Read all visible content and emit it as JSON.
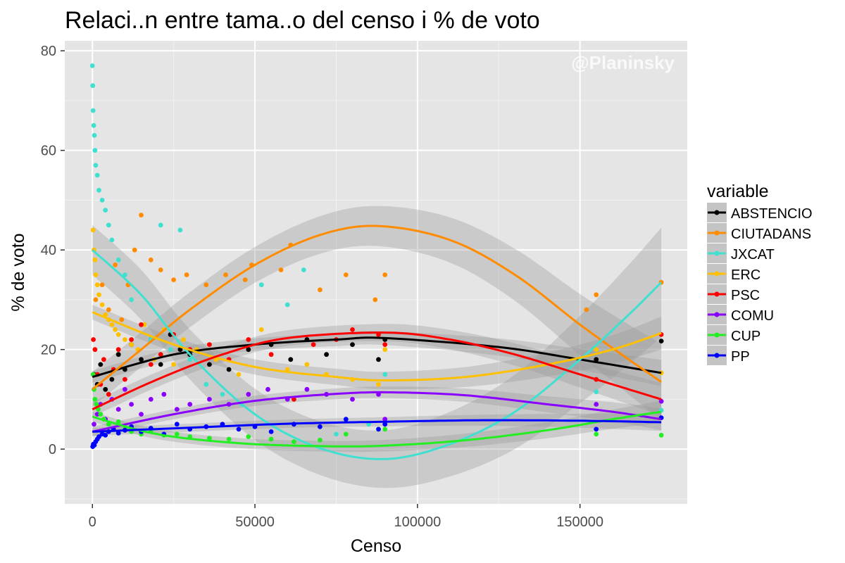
{
  "chart_data": {
    "type": "scatter",
    "title": "Relaci..n entre tama..o del censo i % de voto",
    "xlabel": "Censo",
    "ylabel": "% de voto",
    "xlim": [
      -8500,
      183000
    ],
    "ylim": [
      -11,
      82
    ],
    "x_ticks": [
      0,
      50000,
      100000,
      150000
    ],
    "x_tick_labels": [
      "0",
      "50000",
      "100000",
      "150000"
    ],
    "y_ticks": [
      0,
      20,
      40,
      60,
      80
    ],
    "y_tick_labels": [
      "0",
      "20",
      "40",
      "60",
      "80"
    ],
    "grid": true,
    "watermark": "@Planinsky",
    "legend": {
      "title": "variable",
      "placement": "right"
    },
    "series": [
      {
        "name": "ABSTENCIO",
        "color": "#000000",
        "points": [
          [
            500,
            15
          ],
          [
            1500,
            13
          ],
          [
            2500,
            17
          ],
          [
            4000,
            12
          ],
          [
            6000,
            14
          ],
          [
            8000,
            19
          ],
          [
            10000,
            16
          ],
          [
            12000,
            21
          ],
          [
            15000,
            18
          ],
          [
            18000,
            22
          ],
          [
            21000,
            17
          ],
          [
            24000,
            23
          ],
          [
            27000,
            20
          ],
          [
            30000,
            19
          ],
          [
            36000,
            17
          ],
          [
            42000,
            16
          ],
          [
            48000,
            20
          ],
          [
            55000,
            21
          ],
          [
            61000,
            18
          ],
          [
            66000,
            22
          ],
          [
            72000,
            19
          ],
          [
            80000,
            21
          ],
          [
            88000,
            18
          ],
          [
            90000,
            22
          ],
          [
            155000,
            18
          ],
          [
            175000,
            21.7
          ]
        ],
        "fit": [
          [
            0,
            14.5
          ],
          [
            25000,
            19
          ],
          [
            50000,
            21
          ],
          [
            75000,
            22
          ],
          [
            90000,
            22.3
          ],
          [
            125000,
            20.5
          ],
          [
            150000,
            18
          ],
          [
            175000,
            15.3
          ]
        ],
        "band": 1.2
      },
      {
        "name": "CIUTADANS",
        "color": "#ff8c00",
        "points": [
          [
            1000,
            30
          ],
          [
            3000,
            33
          ],
          [
            5000,
            28
          ],
          [
            7000,
            37
          ],
          [
            9000,
            26
          ],
          [
            11000,
            33
          ],
          [
            13000,
            40
          ],
          [
            15000,
            47
          ],
          [
            18000,
            38
          ],
          [
            21000,
            36
          ],
          [
            25000,
            34
          ],
          [
            29000,
            35
          ],
          [
            35000,
            33
          ],
          [
            41000,
            35
          ],
          [
            47000,
            34
          ],
          [
            49000,
            37
          ],
          [
            58000,
            36
          ],
          [
            61000,
            41
          ],
          [
            70000,
            32
          ],
          [
            78000,
            35
          ],
          [
            87000,
            30
          ],
          [
            90000,
            35
          ],
          [
            152000,
            28
          ],
          [
            155000,
            31
          ],
          [
            175000,
            33.5
          ]
        ],
        "fit": [
          [
            0,
            12
          ],
          [
            15000,
            20
          ],
          [
            30000,
            28
          ],
          [
            50000,
            37
          ],
          [
            70000,
            43
          ],
          [
            88000,
            44.8
          ],
          [
            110000,
            42
          ],
          [
            130000,
            35
          ],
          [
            150000,
            25
          ],
          [
            165000,
            18
          ],
          [
            175000,
            13.5
          ]
        ],
        "band": 3.5
      },
      {
        "name": "JXCAT",
        "color": "#40e0d0",
        "points": [
          [
            0,
            77
          ],
          [
            100,
            73
          ],
          [
            200,
            68
          ],
          [
            400,
            65
          ],
          [
            600,
            63
          ],
          [
            800,
            60
          ],
          [
            1000,
            57
          ],
          [
            1500,
            55
          ],
          [
            2000,
            52
          ],
          [
            3000,
            50
          ],
          [
            4000,
            48
          ],
          [
            5000,
            45
          ],
          [
            6000,
            42
          ],
          [
            8000,
            38
          ],
          [
            10000,
            35
          ],
          [
            12000,
            30
          ],
          [
            15000,
            25
          ],
          [
            18000,
            22
          ],
          [
            21000,
            45
          ],
          [
            24000,
            20
          ],
          [
            27000,
            44
          ],
          [
            30000,
            18
          ],
          [
            35000,
            13
          ],
          [
            40000,
            11
          ],
          [
            46000,
            9
          ],
          [
            52000,
            33
          ],
          [
            60000,
            29
          ],
          [
            65000,
            36
          ],
          [
            75000,
            3
          ],
          [
            85000,
            5
          ],
          [
            90000,
            15
          ],
          [
            155000,
            11.5
          ],
          [
            175000,
            7.8
          ]
        ],
        "fit": [
          [
            0,
            40
          ],
          [
            15000,
            31
          ],
          [
            30000,
            19
          ],
          [
            50000,
            7
          ],
          [
            70000,
            0.2
          ],
          [
            90000,
            -2
          ],
          [
            110000,
            1
          ],
          [
            130000,
            7.5
          ],
          [
            150000,
            18
          ],
          [
            165000,
            27
          ],
          [
            175000,
            33.5
          ]
        ],
        "band": 5
      },
      {
        "name": "ERC",
        "color": "#ffc000",
        "points": [
          [
            200,
            44
          ],
          [
            500,
            40
          ],
          [
            800,
            38
          ],
          [
            1000,
            35
          ],
          [
            1500,
            33
          ],
          [
            2000,
            31
          ],
          [
            3000,
            29
          ],
          [
            4000,
            27
          ],
          [
            5000,
            26
          ],
          [
            6000,
            25
          ],
          [
            7000,
            24
          ],
          [
            8000,
            23
          ],
          [
            10000,
            22
          ],
          [
            12000,
            21
          ],
          [
            14000,
            20
          ],
          [
            16000,
            25
          ],
          [
            19000,
            18
          ],
          [
            22000,
            24
          ],
          [
            25000,
            17
          ],
          [
            28000,
            22
          ],
          [
            32000,
            20
          ],
          [
            38000,
            18
          ],
          [
            45000,
            15
          ],
          [
            52000,
            24
          ],
          [
            60000,
            16
          ],
          [
            66000,
            17
          ],
          [
            72000,
            15
          ],
          [
            80000,
            14
          ],
          [
            88000,
            13
          ],
          [
            90000,
            20
          ],
          [
            155000,
            20
          ],
          [
            175000,
            15.3
          ]
        ],
        "fit": [
          [
            0,
            27.5
          ],
          [
            25000,
            21
          ],
          [
            50000,
            16.5
          ],
          [
            75000,
            14.5
          ],
          [
            90000,
            13.8
          ],
          [
            115000,
            14.5
          ],
          [
            140000,
            17
          ],
          [
            160000,
            20
          ],
          [
            175000,
            23.3
          ]
        ],
        "band": 1.5
      },
      {
        "name": "PSC",
        "color": "#ff0000",
        "points": [
          [
            300,
            22
          ],
          [
            800,
            20
          ],
          [
            1500,
            15
          ],
          [
            2500,
            13
          ],
          [
            3500,
            18
          ],
          [
            5000,
            11
          ],
          [
            6500,
            16
          ],
          [
            8000,
            20
          ],
          [
            10000,
            14
          ],
          [
            12000,
            22
          ],
          [
            15000,
            25
          ],
          [
            18000,
            17
          ],
          [
            21000,
            19
          ],
          [
            25000,
            23
          ],
          [
            30000,
            20
          ],
          [
            36000,
            21
          ],
          [
            42000,
            18
          ],
          [
            48000,
            22
          ],
          [
            55000,
            19
          ],
          [
            62000,
            10
          ],
          [
            68000,
            21
          ],
          [
            75000,
            22
          ],
          [
            80000,
            24
          ],
          [
            88000,
            23
          ],
          [
            90000,
            21
          ],
          [
            155000,
            14
          ],
          [
            175000,
            23
          ]
        ],
        "fit": [
          [
            0,
            8
          ],
          [
            20000,
            14
          ],
          [
            40000,
            19
          ],
          [
            60000,
            22.3
          ],
          [
            90000,
            23.4
          ],
          [
            110000,
            22
          ],
          [
            130000,
            19
          ],
          [
            150000,
            15
          ],
          [
            165000,
            12
          ],
          [
            175000,
            10
          ]
        ],
        "band": 1.5
      },
      {
        "name": "COMU",
        "color": "#8a00ff",
        "points": [
          [
            500,
            5
          ],
          [
            1500,
            7
          ],
          [
            2500,
            9
          ],
          [
            4000,
            6
          ],
          [
            6000,
            10
          ],
          [
            8000,
            8
          ],
          [
            10000,
            12
          ],
          [
            12000,
            9
          ],
          [
            15000,
            7
          ],
          [
            18000,
            10
          ],
          [
            22000,
            11
          ],
          [
            26000,
            8
          ],
          [
            30000,
            9
          ],
          [
            36000,
            10
          ],
          [
            42000,
            9
          ],
          [
            48000,
            11
          ],
          [
            54000,
            12
          ],
          [
            60000,
            10
          ],
          [
            66000,
            12
          ],
          [
            72000,
            11
          ],
          [
            80000,
            10
          ],
          [
            88000,
            11
          ],
          [
            90000,
            6
          ],
          [
            155000,
            9
          ],
          [
            175000,
            9.6
          ]
        ],
        "fit": [
          [
            0,
            3.5
          ],
          [
            25000,
            7
          ],
          [
            50000,
            9.7
          ],
          [
            75000,
            11.1
          ],
          [
            92000,
            11.4
          ],
          [
            115000,
            10.8
          ],
          [
            140000,
            9
          ],
          [
            160000,
            7.5
          ],
          [
            175000,
            6
          ]
        ],
        "band": 1
      },
      {
        "name": "CUP",
        "color": "#22ee22",
        "points": [
          [
            200,
            15
          ],
          [
            500,
            12
          ],
          [
            800,
            10
          ],
          [
            1200,
            9
          ],
          [
            1800,
            8
          ],
          [
            2500,
            7
          ],
          [
            3500,
            6
          ],
          [
            5000,
            5
          ],
          [
            6500,
            4
          ],
          [
            8000,
            5.5
          ],
          [
            10000,
            4
          ],
          [
            12000,
            3.5
          ],
          [
            15000,
            3
          ],
          [
            18000,
            3.5
          ],
          [
            22000,
            2.8
          ],
          [
            26000,
            3
          ],
          [
            30000,
            2.5
          ],
          [
            36000,
            2.2
          ],
          [
            42000,
            2
          ],
          [
            48000,
            2.5
          ],
          [
            55000,
            2
          ],
          [
            62000,
            1.5
          ],
          [
            70000,
            1.8
          ],
          [
            78000,
            3
          ],
          [
            88000,
            4
          ],
          [
            90000,
            4
          ],
          [
            155000,
            3
          ],
          [
            175000,
            2.8
          ]
        ],
        "fit": [
          [
            0,
            6.5
          ],
          [
            20000,
            3
          ],
          [
            45000,
            1.2
          ],
          [
            70000,
            0.6
          ],
          [
            90000,
            0.7
          ],
          [
            115000,
            1.8
          ],
          [
            140000,
            3.8
          ],
          [
            160000,
            6
          ],
          [
            175000,
            7.5
          ]
        ],
        "band": 1
      },
      {
        "name": "PP",
        "color": "#0000ff",
        "points": [
          [
            100,
            0.5
          ],
          [
            300,
            1
          ],
          [
            600,
            0.8
          ],
          [
            1000,
            1.5
          ],
          [
            1500,
            2
          ],
          [
            2000,
            2.5
          ],
          [
            3000,
            3
          ],
          [
            4000,
            2.8
          ],
          [
            5000,
            3.5
          ],
          [
            6500,
            4
          ],
          [
            8000,
            3.2
          ],
          [
            10000,
            3.8
          ],
          [
            12000,
            4.5
          ],
          [
            15000,
            3.5
          ],
          [
            18000,
            4.2
          ],
          [
            22000,
            3
          ],
          [
            26000,
            5
          ],
          [
            30000,
            4
          ],
          [
            35000,
            4.5
          ],
          [
            40000,
            5
          ],
          [
            45000,
            4
          ],
          [
            50000,
            4.5
          ],
          [
            55000,
            3.5
          ],
          [
            62000,
            5
          ],
          [
            70000,
            4.5
          ],
          [
            78000,
            6
          ],
          [
            88000,
            4
          ],
          [
            90000,
            5
          ],
          [
            155000,
            4
          ],
          [
            175000,
            6.3
          ]
        ],
        "fit": [
          [
            0,
            3.5
          ],
          [
            30000,
            4.3
          ],
          [
            60000,
            5.1
          ],
          [
            90000,
            5.5
          ],
          [
            120000,
            5.8
          ],
          [
            150000,
            5.7
          ],
          [
            175000,
            5.4
          ]
        ],
        "band": 0.8
      }
    ]
  }
}
